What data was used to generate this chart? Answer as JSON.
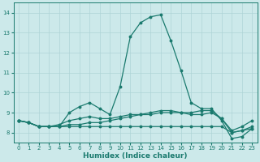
{
  "xlabel": "Humidex (Indice chaleur)",
  "ylabel": "",
  "xlim": [
    -0.5,
    23.5
  ],
  "ylim": [
    7.5,
    14.5
  ],
  "yticks": [
    8,
    9,
    10,
    11,
    12,
    13,
    14
  ],
  "xticks": [
    0,
    1,
    2,
    3,
    4,
    5,
    6,
    7,
    8,
    9,
    10,
    11,
    12,
    13,
    14,
    15,
    16,
    17,
    18,
    19,
    20,
    21,
    22,
    23
  ],
  "bg_color": "#cce9ea",
  "grid_color": "#aed4d6",
  "line_color": "#1a7a6e",
  "lines": [
    {
      "x": [
        0,
        1,
        2,
        3,
        4,
        5,
        6,
        7,
        8,
        9,
        10,
        11,
        12,
        13,
        14,
        15,
        16,
        17,
        18,
        19,
        20,
        21,
        22,
        23
      ],
      "y": [
        8.6,
        8.5,
        8.3,
        8.3,
        8.3,
        9.0,
        9.3,
        9.5,
        9.2,
        8.9,
        10.3,
        12.8,
        13.5,
        13.8,
        13.9,
        12.6,
        11.1,
        9.5,
        9.2,
        9.2,
        8.6,
        7.7,
        7.8,
        8.2
      ]
    },
    {
      "x": [
        0,
        1,
        2,
        3,
        4,
        5,
        6,
        7,
        8,
        9,
        10,
        11,
        12,
        13,
        14,
        15,
        16,
        17,
        18,
        19,
        20,
        21,
        22,
        23
      ],
      "y": [
        8.6,
        8.5,
        8.3,
        8.3,
        8.4,
        8.6,
        8.7,
        8.8,
        8.7,
        8.7,
        8.8,
        8.9,
        8.9,
        9.0,
        9.1,
        9.1,
        9.0,
        8.9,
        8.9,
        9.0,
        8.7,
        8.0,
        8.1,
        8.3
      ]
    },
    {
      "x": [
        0,
        1,
        2,
        3,
        4,
        5,
        6,
        7,
        8,
        9,
        10,
        11,
        12,
        13,
        14,
        15,
        16,
        17,
        18,
        19,
        20,
        21,
        22,
        23
      ],
      "y": [
        8.6,
        8.5,
        8.3,
        8.3,
        8.3,
        8.4,
        8.4,
        8.5,
        8.5,
        8.6,
        8.7,
        8.8,
        8.9,
        8.9,
        9.0,
        9.0,
        9.0,
        9.0,
        9.1,
        9.1,
        8.7,
        8.1,
        8.3,
        8.6
      ]
    },
    {
      "x": [
        0,
        1,
        2,
        3,
        4,
        5,
        6,
        7,
        8,
        9,
        10,
        11,
        12,
        13,
        14,
        15,
        16,
        17,
        18,
        19,
        20,
        21,
        22,
        23
      ],
      "y": [
        8.6,
        8.5,
        8.3,
        8.3,
        8.3,
        8.3,
        8.3,
        8.3,
        8.3,
        8.3,
        8.3,
        8.3,
        8.3,
        8.3,
        8.3,
        8.3,
        8.3,
        8.3,
        8.3,
        8.3,
        8.3,
        8.0,
        8.1,
        8.2
      ]
    }
  ],
  "marker": "o",
  "markersize": 1.8,
  "linewidth": 0.9,
  "tick_fontsize": 5.0,
  "label_fontsize": 6.5,
  "tick_color": "#1a7a6e",
  "axis_color": "#1a7a6e"
}
